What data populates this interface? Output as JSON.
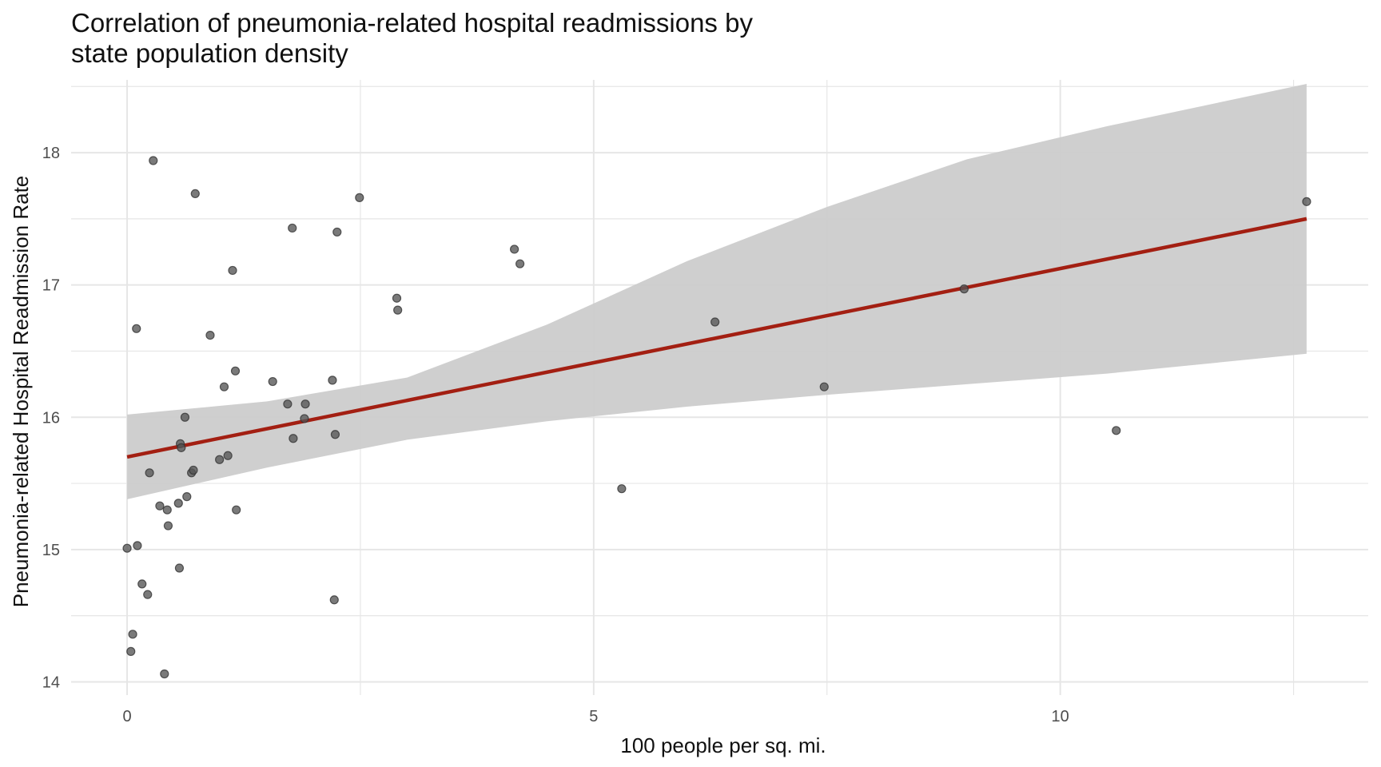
{
  "chart_data": {
    "type": "scatter",
    "title": "Correlation of pneumonia-related hospital readmissions by\nstate population density",
    "xlabel": "100 people per sq. mi.",
    "ylabel": "Pneumonia-related Hospital Readmission Rate",
    "xlim": [
      -0.6,
      13.3
    ],
    "ylim": [
      13.9,
      18.55
    ],
    "x_ticks": [
      0,
      5,
      10
    ],
    "x_tick_labels": [
      "0",
      "5",
      "10"
    ],
    "y_ticks": [
      14,
      15,
      16,
      17,
      18
    ],
    "y_tick_labels": [
      "14",
      "15",
      "16",
      "17",
      "18"
    ],
    "grid": true,
    "legend": "none",
    "colors": {
      "points": "#555555",
      "fit_line": "#a31f12",
      "ribbon": "#cccccc",
      "grid": "#e6e6e6"
    },
    "points": [
      [
        0.0,
        15.01
      ],
      [
        0.04,
        14.23
      ],
      [
        0.06,
        14.36
      ],
      [
        0.1,
        16.67
      ],
      [
        0.11,
        15.03
      ],
      [
        0.16,
        14.74
      ],
      [
        0.22,
        14.66
      ],
      [
        0.24,
        15.58
      ],
      [
        0.28,
        17.94
      ],
      [
        0.35,
        15.33
      ],
      [
        0.4,
        14.06
      ],
      [
        0.43,
        15.3
      ],
      [
        0.44,
        15.18
      ],
      [
        0.55,
        15.35
      ],
      [
        0.56,
        14.86
      ],
      [
        0.57,
        15.8
      ],
      [
        0.58,
        15.77
      ],
      [
        0.62,
        16.0
      ],
      [
        0.64,
        15.4
      ],
      [
        0.69,
        15.58
      ],
      [
        0.71,
        15.6
      ],
      [
        0.73,
        17.69
      ],
      [
        0.89,
        16.62
      ],
      [
        0.99,
        15.68
      ],
      [
        1.04,
        16.23
      ],
      [
        1.08,
        15.71
      ],
      [
        1.13,
        17.11
      ],
      [
        1.16,
        16.35
      ],
      [
        1.17,
        15.3
      ],
      [
        1.56,
        16.27
      ],
      [
        1.72,
        16.1
      ],
      [
        1.77,
        17.43
      ],
      [
        1.78,
        15.84
      ],
      [
        1.9,
        15.99
      ],
      [
        1.91,
        16.1
      ],
      [
        2.2,
        16.28
      ],
      [
        2.22,
        14.62
      ],
      [
        2.23,
        15.87
      ],
      [
        2.25,
        17.4
      ],
      [
        2.49,
        17.66
      ],
      [
        2.89,
        16.9
      ],
      [
        2.9,
        16.81
      ],
      [
        4.15,
        17.27
      ],
      [
        4.21,
        17.16
      ],
      [
        5.3,
        15.46
      ],
      [
        6.3,
        16.72
      ],
      [
        7.47,
        16.23
      ],
      [
        8.97,
        16.97
      ],
      [
        10.6,
        15.9
      ],
      [
        12.64,
        17.63
      ]
    ],
    "fit": {
      "x_start": 0.0,
      "y_start": 15.7,
      "x_end": 12.64,
      "y_end": 17.5
    },
    "confidence_band": {
      "x": [
        0.0,
        1.5,
        3.0,
        4.5,
        6.0,
        7.5,
        9.0,
        10.5,
        12.64
      ],
      "lower": [
        15.38,
        15.62,
        15.83,
        15.97,
        16.08,
        16.17,
        16.25,
        16.33,
        16.48
      ],
      "upper": [
        16.02,
        16.12,
        16.3,
        16.7,
        17.18,
        17.59,
        17.95,
        18.2,
        18.52
      ]
    }
  }
}
